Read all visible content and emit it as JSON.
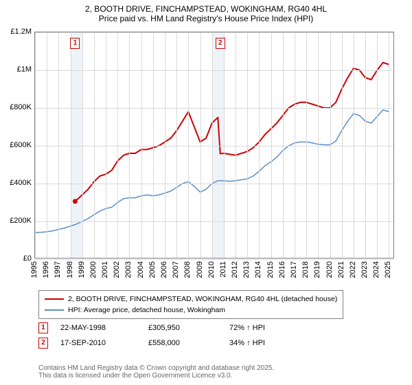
{
  "title": {
    "line1": "2, BOOTH DRIVE, FINCHAMPSTEAD, WOKINGHAM, RG40 4HL",
    "line2": "Price paid vs. HM Land Registry's House Price Index (HPI)",
    "fontsize": 12
  },
  "chart": {
    "type": "line",
    "background_color": "#ffffff",
    "grid_color": "#d9d9d9",
    "border_color": "#808080",
    "shaded_band_color": "#eef3f9",
    "xlim": [
      1995,
      2025.5
    ],
    "ylim": [
      0,
      1200000
    ],
    "yticks": [
      0,
      200000,
      400000,
      600000,
      800000,
      1000000,
      1200000
    ],
    "ytick_labels": [
      "£0",
      "£200K",
      "£400K",
      "£600K",
      "£800K",
      "£1M",
      "£1.2M"
    ],
    "xticks": [
      1995,
      1996,
      1997,
      1998,
      1999,
      2000,
      2001,
      2002,
      2003,
      2004,
      2005,
      2006,
      2007,
      2008,
      2009,
      2010,
      2011,
      2012,
      2013,
      2014,
      2015,
      2016,
      2017,
      2018,
      2019,
      2020,
      2021,
      2022,
      2023,
      2024,
      2025
    ],
    "xtick_labels": [
      "1995",
      "1996",
      "1997",
      "1998",
      "1999",
      "2000",
      "2001",
      "2002",
      "2003",
      "2004",
      "2005",
      "2006",
      "2007",
      "2008",
      "2009",
      "2010",
      "2011",
      "2012",
      "2013",
      "2014",
      "2015",
      "2016",
      "2017",
      "2018",
      "2019",
      "2020",
      "2021",
      "2022",
      "2023",
      "2024",
      "2025"
    ],
    "shaded_bands": [
      [
        1998,
        1999
      ],
      [
        2010,
        2011
      ]
    ],
    "series": [
      {
        "name": "price_paid",
        "label": "2, BOOTH DRIVE, FINCHAMPSTEAD, WOKINGHAM, RG40 4HL (detached house)",
        "color": "#cc0000",
        "line_width": 2,
        "x": [
          1998.4,
          1999,
          1999.5,
          2000,
          2000.5,
          2001,
          2001.5,
          2002,
          2002.5,
          2003,
          2003.5,
          2004,
          2004.5,
          2005,
          2005.5,
          2006,
          2006.5,
          2007,
          2007.5,
          2008,
          2008.5,
          2009,
          2009.5,
          2010,
          2010.5,
          2010.7,
          2011,
          2011.5,
          2012,
          2012.5,
          2013,
          2013.5,
          2014,
          2014.5,
          2015,
          2015.5,
          2016,
          2016.5,
          2017,
          2017.5,
          2018,
          2018.5,
          2019,
          2019.5,
          2020,
          2020.5,
          2021,
          2021.5,
          2022,
          2022.5,
          2023,
          2023.5,
          2024,
          2024.5,
          2025
        ],
        "y": [
          305950,
          340000,
          370000,
          410000,
          440000,
          450000,
          470000,
          520000,
          550000,
          560000,
          560000,
          580000,
          580000,
          590000,
          600000,
          620000,
          640000,
          680000,
          730000,
          780000,
          700000,
          620000,
          640000,
          720000,
          750000,
          558000,
          560000,
          555000,
          550000,
          560000,
          570000,
          590000,
          620000,
          660000,
          690000,
          720000,
          760000,
          800000,
          820000,
          830000,
          830000,
          820000,
          810000,
          800000,
          800000,
          830000,
          900000,
          960000,
          1010000,
          1000000,
          960000,
          950000,
          1000000,
          1040000,
          1030000
        ],
        "start_marker": true
      },
      {
        "name": "hpi",
        "label": "HPI: Average price, detached house, Wokingham",
        "color": "#5b8fc7",
        "line_width": 1.5,
        "x": [
          1995,
          1995.5,
          1996,
          1996.5,
          1997,
          1997.5,
          1998,
          1998.5,
          1999,
          1999.5,
          2000,
          2000.5,
          2001,
          2001.5,
          2002,
          2002.5,
          2003,
          2003.5,
          2004,
          2004.5,
          2005,
          2005.5,
          2006,
          2006.5,
          2007,
          2007.5,
          2008,
          2008.5,
          2009,
          2009.5,
          2010,
          2010.5,
          2011,
          2011.5,
          2012,
          2012.5,
          2013,
          2013.5,
          2014,
          2014.5,
          2015,
          2015.5,
          2016,
          2016.5,
          2017,
          2017.5,
          2018,
          2018.5,
          2019,
          2019.5,
          2020,
          2020.5,
          2021,
          2021.5,
          2022,
          2022.5,
          2023,
          2023.5,
          2024,
          2024.5,
          2025
        ],
        "y": [
          140000,
          142000,
          145000,
          150000,
          158000,
          165000,
          175000,
          185000,
          200000,
          215000,
          235000,
          255000,
          268000,
          275000,
          300000,
          320000,
          325000,
          325000,
          335000,
          340000,
          335000,
          340000,
          350000,
          360000,
          380000,
          400000,
          410000,
          385000,
          355000,
          370000,
          400000,
          415000,
          415000,
          412000,
          415000,
          420000,
          425000,
          440000,
          465000,
          495000,
          515000,
          540000,
          575000,
          600000,
          615000,
          620000,
          620000,
          615000,
          608000,
          605000,
          605000,
          625000,
          680000,
          730000,
          770000,
          760000,
          730000,
          720000,
          755000,
          790000,
          780000
        ]
      }
    ],
    "markers": [
      {
        "id": "1",
        "x": 1998.4,
        "color": "#cc0000"
      },
      {
        "id": "2",
        "x": 2010.7,
        "color": "#cc0000"
      }
    ]
  },
  "legend": {
    "border_color": "#808080"
  },
  "sales": [
    {
      "id": "1",
      "date": "22-MAY-1998",
      "price": "£305,950",
      "pct": "72% ↑ HPI",
      "color": "#cc0000"
    },
    {
      "id": "2",
      "date": "17-SEP-2010",
      "price": "£558,000",
      "pct": "34% ↑ HPI",
      "color": "#cc0000"
    }
  ],
  "footnote": {
    "line1": "Contains HM Land Registry data © Crown copyright and database right 2025.",
    "line2": "This data is licensed under the Open Government Licence v3.0."
  }
}
